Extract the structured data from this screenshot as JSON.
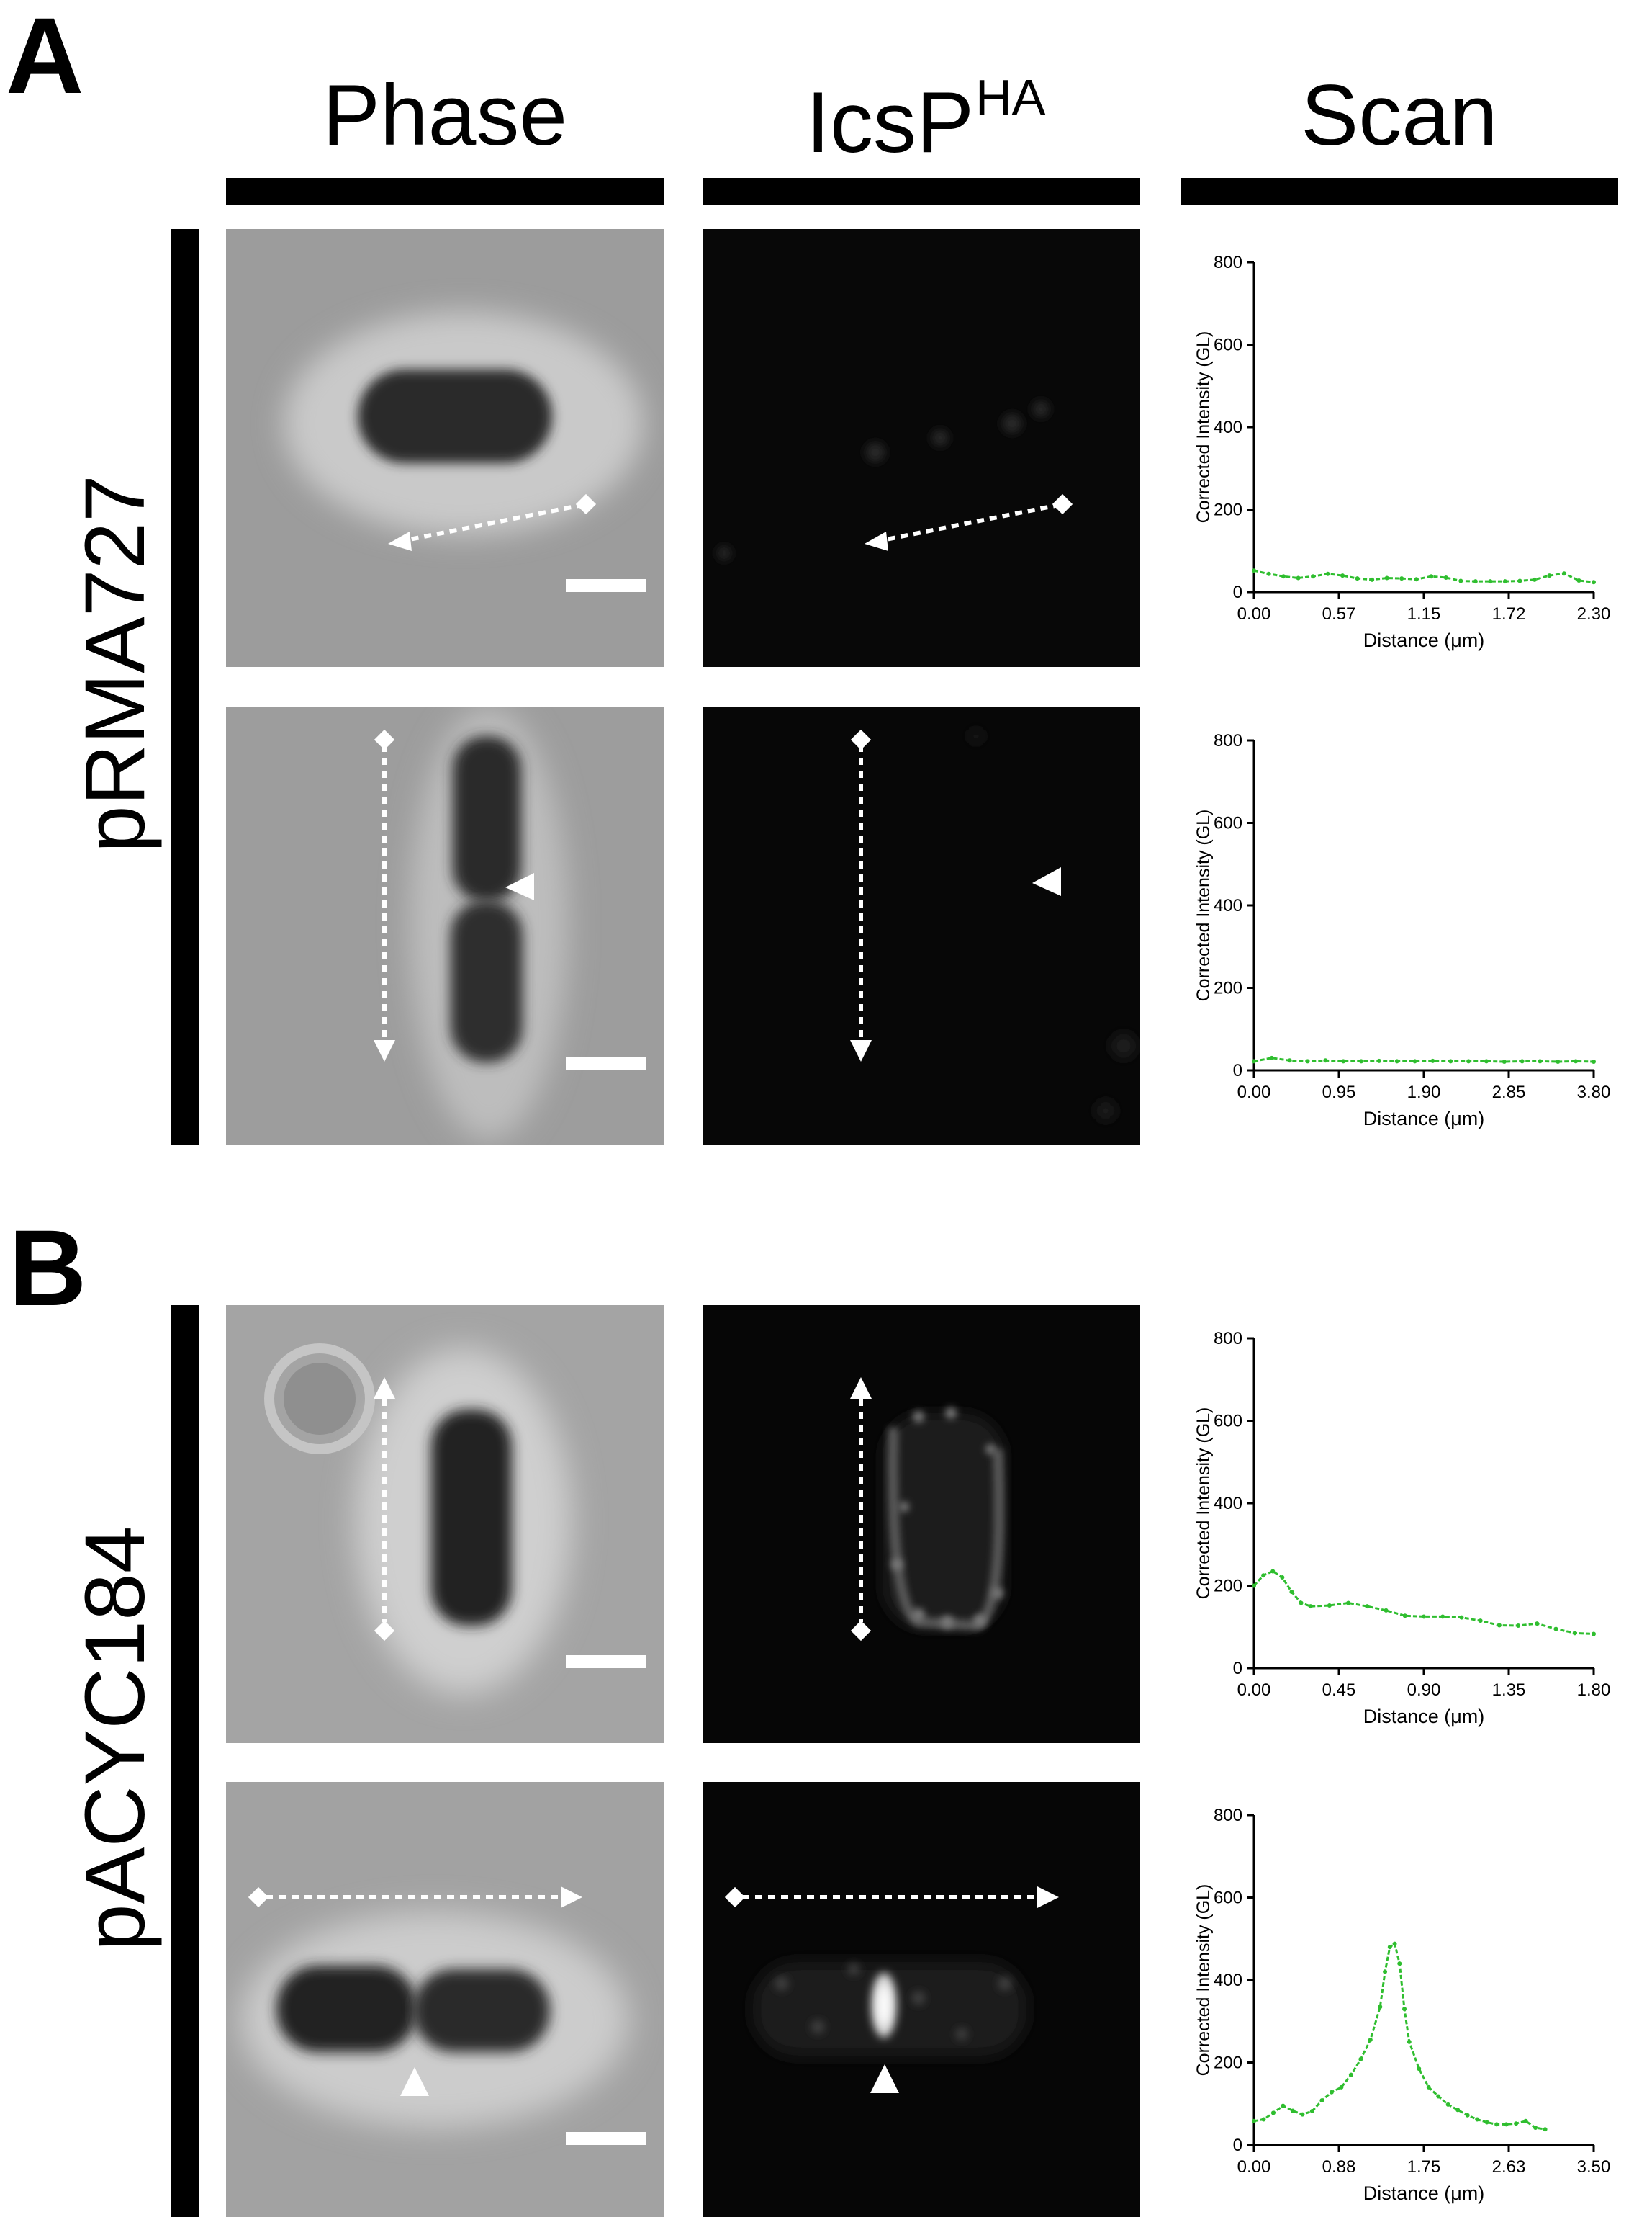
{
  "panels": {
    "A": {
      "letter": "A",
      "plasmid": "pRMA727"
    },
    "B": {
      "letter": "B",
      "plasmid": "pACYC184"
    }
  },
  "columns": {
    "phase": "Phase",
    "icsp_main": "IcsP",
    "icsp_sup": "HA",
    "scan": "Scan"
  },
  "colors": {
    "trace": "#2fbe2f",
    "scale_bar": "#ffffff",
    "arrow": "#ffffff"
  },
  "chart_data": [
    {
      "id": "A1",
      "type": "line",
      "ylabel": "Corrected Intensity (GL)",
      "xlabel": "Distance (μm)",
      "ylim": [
        0,
        800
      ],
      "yticks": [
        "0",
        "200",
        "400",
        "600",
        "800"
      ],
      "xlim": [
        0,
        2.3
      ],
      "xticks": [
        "0.00",
        "0.57",
        "1.15",
        "1.72",
        "2.30"
      ],
      "x": [
        0.0,
        0.1,
        0.2,
        0.3,
        0.4,
        0.5,
        0.6,
        0.7,
        0.8,
        0.9,
        1.0,
        1.1,
        1.2,
        1.3,
        1.4,
        1.5,
        1.6,
        1.7,
        1.8,
        1.9,
        2.0,
        2.1,
        2.2,
        2.3
      ],
      "values": [
        52,
        44,
        38,
        34,
        38,
        44,
        40,
        33,
        30,
        34,
        33,
        31,
        38,
        35,
        27,
        26,
        26,
        26,
        27,
        30,
        40,
        45,
        28,
        24
      ],
      "grid": false
    },
    {
      "id": "A2",
      "type": "line",
      "ylabel": "Corrected Intensity (GL)",
      "xlabel": "Distance (μm)",
      "ylim": [
        0,
        800
      ],
      "yticks": [
        "0",
        "200",
        "400",
        "600",
        "800"
      ],
      "xlim": [
        0,
        3.8
      ],
      "xticks": [
        "0.00",
        "0.95",
        "1.90",
        "2.85",
        "3.80"
      ],
      "x": [
        0.0,
        0.2,
        0.4,
        0.6,
        0.8,
        1.0,
        1.2,
        1.4,
        1.6,
        1.8,
        2.0,
        2.2,
        2.4,
        2.6,
        2.8,
        3.0,
        3.2,
        3.4,
        3.6,
        3.8
      ],
      "values": [
        22,
        30,
        24,
        22,
        24,
        22,
        22,
        23,
        22,
        22,
        23,
        22,
        22,
        22,
        21,
        22,
        22,
        21,
        22,
        21
      ],
      "grid": false
    },
    {
      "id": "B1",
      "type": "line",
      "ylabel": "Corrected Intensity (GL)",
      "xlabel": "Distance (μm)",
      "ylim": [
        0,
        800
      ],
      "yticks": [
        "0",
        "200",
        "400",
        "600",
        "800"
      ],
      "xlim": [
        0,
        1.8
      ],
      "xticks": [
        "0.00",
        "0.45",
        "0.90",
        "1.35",
        "1.80"
      ],
      "x": [
        0.0,
        0.05,
        0.1,
        0.15,
        0.2,
        0.25,
        0.3,
        0.4,
        0.5,
        0.6,
        0.7,
        0.8,
        0.9,
        1.0,
        1.1,
        1.2,
        1.3,
        1.4,
        1.5,
        1.6,
        1.7,
        1.8
      ],
      "values": [
        200,
        225,
        235,
        220,
        185,
        158,
        150,
        152,
        158,
        150,
        140,
        127,
        125,
        125,
        123,
        115,
        104,
        103,
        108,
        95,
        85,
        83
      ],
      "grid": false
    },
    {
      "id": "B2",
      "type": "line",
      "ylabel": "Corrected Intensity (GL)",
      "xlabel": "Distance (μm)",
      "ylim": [
        0,
        800
      ],
      "yticks": [
        "0",
        "200",
        "400",
        "600",
        "800"
      ],
      "xlim": [
        0,
        3.5
      ],
      "xticks": [
        "0.00",
        "0.88",
        "1.75",
        "2.63",
        "3.50"
      ],
      "x": [
        0.0,
        0.1,
        0.2,
        0.3,
        0.4,
        0.5,
        0.6,
        0.7,
        0.8,
        0.9,
        1.0,
        1.1,
        1.2,
        1.3,
        1.35,
        1.4,
        1.45,
        1.5,
        1.55,
        1.6,
        1.7,
        1.8,
        1.9,
        2.0,
        2.1,
        2.2,
        2.3,
        2.4,
        2.5,
        2.6,
        2.7,
        2.8,
        2.9,
        3.0
      ],
      "values": [
        58,
        62,
        78,
        95,
        83,
        74,
        82,
        108,
        128,
        140,
        170,
        208,
        255,
        335,
        420,
        480,
        488,
        440,
        330,
        250,
        185,
        140,
        118,
        98,
        85,
        72,
        62,
        55,
        50,
        50,
        52,
        58,
        42,
        38
      ],
      "grid": false
    }
  ]
}
